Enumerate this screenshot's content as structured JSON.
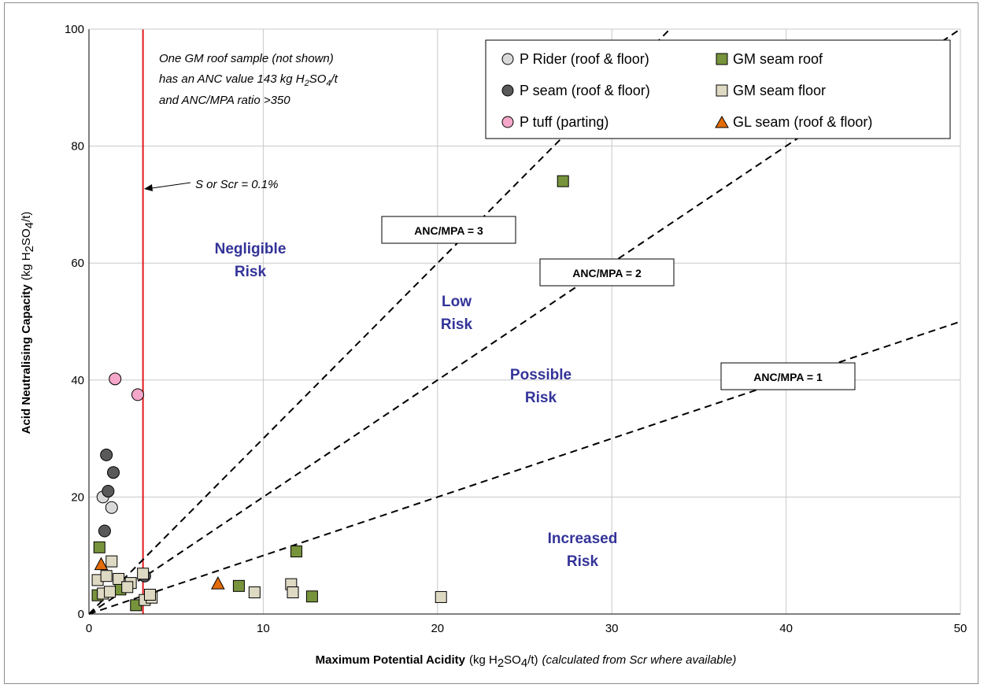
{
  "chart_data": {
    "type": "scatter",
    "xlabel": {
      "bold": "Maximum Potential Acidity",
      "unit_pre": "(kg H",
      "unit_sub1": "2",
      "unit_mid": "SO",
      "unit_sub2": "4",
      "unit_post": "/t)",
      "note": "(calculated from Scr where available)"
    },
    "ylabel": {
      "bold": "Acid Neutralising Capacity",
      "unit_pre": "(kg H",
      "unit_sub1": "2",
      "unit_mid": "SO",
      "unit_sub2": "4",
      "unit_post": "/t)"
    },
    "xlim": [
      0,
      50
    ],
    "ylim": [
      0,
      100
    ],
    "x_ticks": [
      0,
      10,
      20,
      30,
      40,
      50
    ],
    "y_ticks": [
      0,
      20,
      40,
      60,
      80,
      100
    ],
    "grid": true,
    "legend_position": "top-right",
    "series": [
      {
        "name": "P Rider (roof & floor)",
        "marker": "circle",
        "color": "#d9d9d9",
        "points": [
          [
            0.8,
            20
          ],
          [
            1.3,
            18.2
          ]
        ]
      },
      {
        "name": "P seam (roof & floor)",
        "marker": "circle",
        "color": "#595959",
        "points": [
          [
            1.0,
            27.2
          ],
          [
            1.4,
            24.2
          ],
          [
            1.1,
            21
          ],
          [
            0.9,
            14.2
          ],
          [
            3.2,
            6.5
          ]
        ]
      },
      {
        "name": "P tuff (parting)",
        "marker": "circle",
        "color": "#f4a7c9",
        "points": [
          [
            1.5,
            40.2
          ],
          [
            2.8,
            37.5
          ]
        ]
      },
      {
        "name": "GM seam roof",
        "marker": "square",
        "color": "#77933c",
        "points": [
          [
            0.6,
            11.4
          ],
          [
            27.2,
            74
          ],
          [
            11.9,
            10.7
          ],
          [
            8.6,
            4.8
          ],
          [
            12.8,
            3.0
          ],
          [
            2.7,
            1.5
          ],
          [
            0.5,
            3.2
          ],
          [
            1.8,
            4.2
          ]
        ]
      },
      {
        "name": "GM seam floor",
        "marker": "square",
        "color": "#ddd9c3",
        "points": [
          [
            0.5,
            5.8
          ],
          [
            1.3,
            9.0
          ],
          [
            1.0,
            6.5
          ],
          [
            1.7,
            6.0
          ],
          [
            2.4,
            5.3
          ],
          [
            2.2,
            4.6
          ],
          [
            3.1,
            6.9
          ],
          [
            3.2,
            2.4
          ],
          [
            3.6,
            2.8
          ],
          [
            3.5,
            3.3
          ],
          [
            0.8,
            3.5
          ],
          [
            1.2,
            3.8
          ],
          [
            9.5,
            3.7
          ],
          [
            11.6,
            5.1
          ],
          [
            11.7,
            3.7
          ],
          [
            20.2,
            2.9
          ]
        ]
      },
      {
        "name": "GL seam (roof & floor)",
        "marker": "triangle",
        "color": "#e36c09",
        "points": [
          [
            0.7,
            8.4
          ],
          [
            7.4,
            5.1
          ]
        ]
      }
    ],
    "reference_lines": [
      {
        "label": "ANC/MPA = 3",
        "slope": 3
      },
      {
        "label": "ANC/MPA = 2",
        "slope": 2
      },
      {
        "label": "ANC/MPA = 1",
        "slope": 1
      }
    ],
    "threshold_line": {
      "x": 3.1,
      "color": "#e31a1c",
      "label": "S or Scr = 0.1%"
    },
    "zones": [
      {
        "line1": "Negligible",
        "line2": "Risk"
      },
      {
        "line1": "Low",
        "line2": "Risk"
      },
      {
        "line1": "Possible",
        "line2": "Risk"
      },
      {
        "line1": "Increased",
        "line2": "Risk"
      }
    ],
    "annotation": {
      "line1": "One GM roof sample (not shown)",
      "line2_pre": "has an ANC value 143  kg H",
      "line2_sub1": "2",
      "line2_mid": "SO",
      "line2_sub2": "4",
      "line2_post": "/t",
      "line3": "and ANC/MPA ratio >350"
    }
  }
}
